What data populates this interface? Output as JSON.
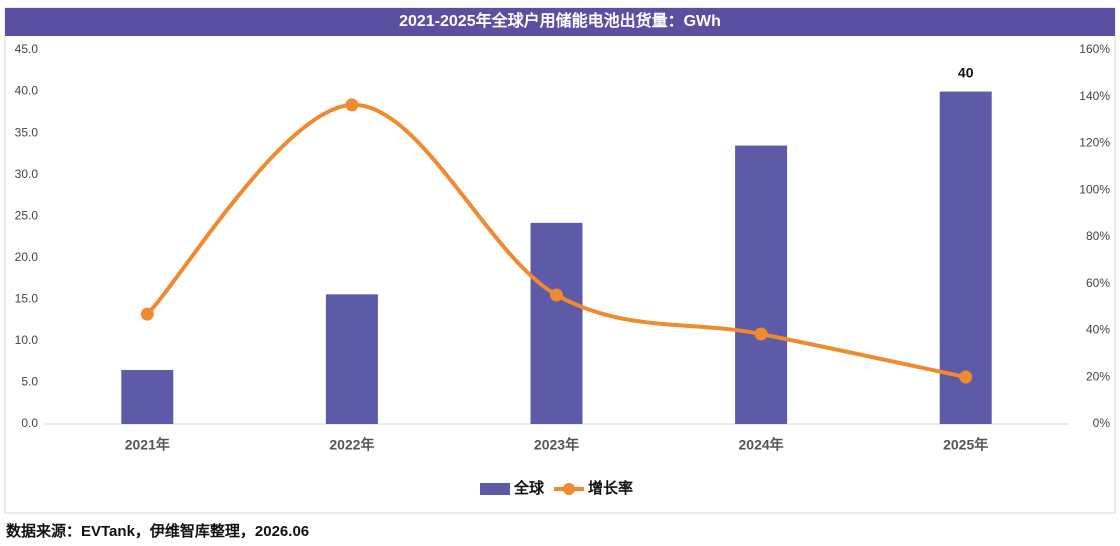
{
  "chart_data": {
    "type": "bar_line",
    "title": "2021-2025年全球户用储能电池出货量：GWh",
    "source": "数据来源：EVTank，伊维智库整理，2026.06",
    "categories": [
      "2021年",
      "2022年",
      "2023年",
      "2024年",
      "2025年"
    ],
    "series": [
      {
        "name": "全球",
        "type": "bar",
        "color": "#5d5ba8",
        "values": [
          6.5,
          15.6,
          24.2,
          33.5,
          40
        ],
        "value_labels": [
          null,
          null,
          null,
          null,
          "40"
        ]
      },
      {
        "name": "增长率",
        "type": "line",
        "axis": "y2",
        "smooth": true,
        "color": "#ef8a2e",
        "values": [
          47,
          136.5,
          55.2,
          38.5,
          20.1
        ]
      }
    ],
    "ylim": [
      0,
      45
    ],
    "yticks": [
      {
        "value": 0,
        "label": "0.0"
      },
      {
        "value": 5,
        "label": "5.0"
      },
      {
        "value": 10,
        "label": "10.0"
      },
      {
        "value": 15,
        "label": "15.0"
      },
      {
        "value": 20,
        "label": "20.0"
      },
      {
        "value": 25,
        "label": "25.0"
      },
      {
        "value": 30,
        "label": "30.0"
      },
      {
        "value": 35,
        "label": "35.0"
      },
      {
        "value": 40,
        "label": "40.0"
      },
      {
        "value": 45,
        "label": "45.0"
      }
    ],
    "y2lim": [
      0,
      160
    ],
    "y2ticks": [
      {
        "value": 0,
        "label": "0%"
      },
      {
        "value": 20,
        "label": "20%"
      },
      {
        "value": 40,
        "label": "40%"
      },
      {
        "value": 60,
        "label": "60%"
      },
      {
        "value": 80,
        "label": "80%"
      },
      {
        "value": 100,
        "label": "100%"
      },
      {
        "value": 120,
        "label": "120%"
      },
      {
        "value": 140,
        "label": "140%"
      },
      {
        "value": 160,
        "label": "160%"
      }
    ],
    "grid": false,
    "legend": "bottom"
  }
}
